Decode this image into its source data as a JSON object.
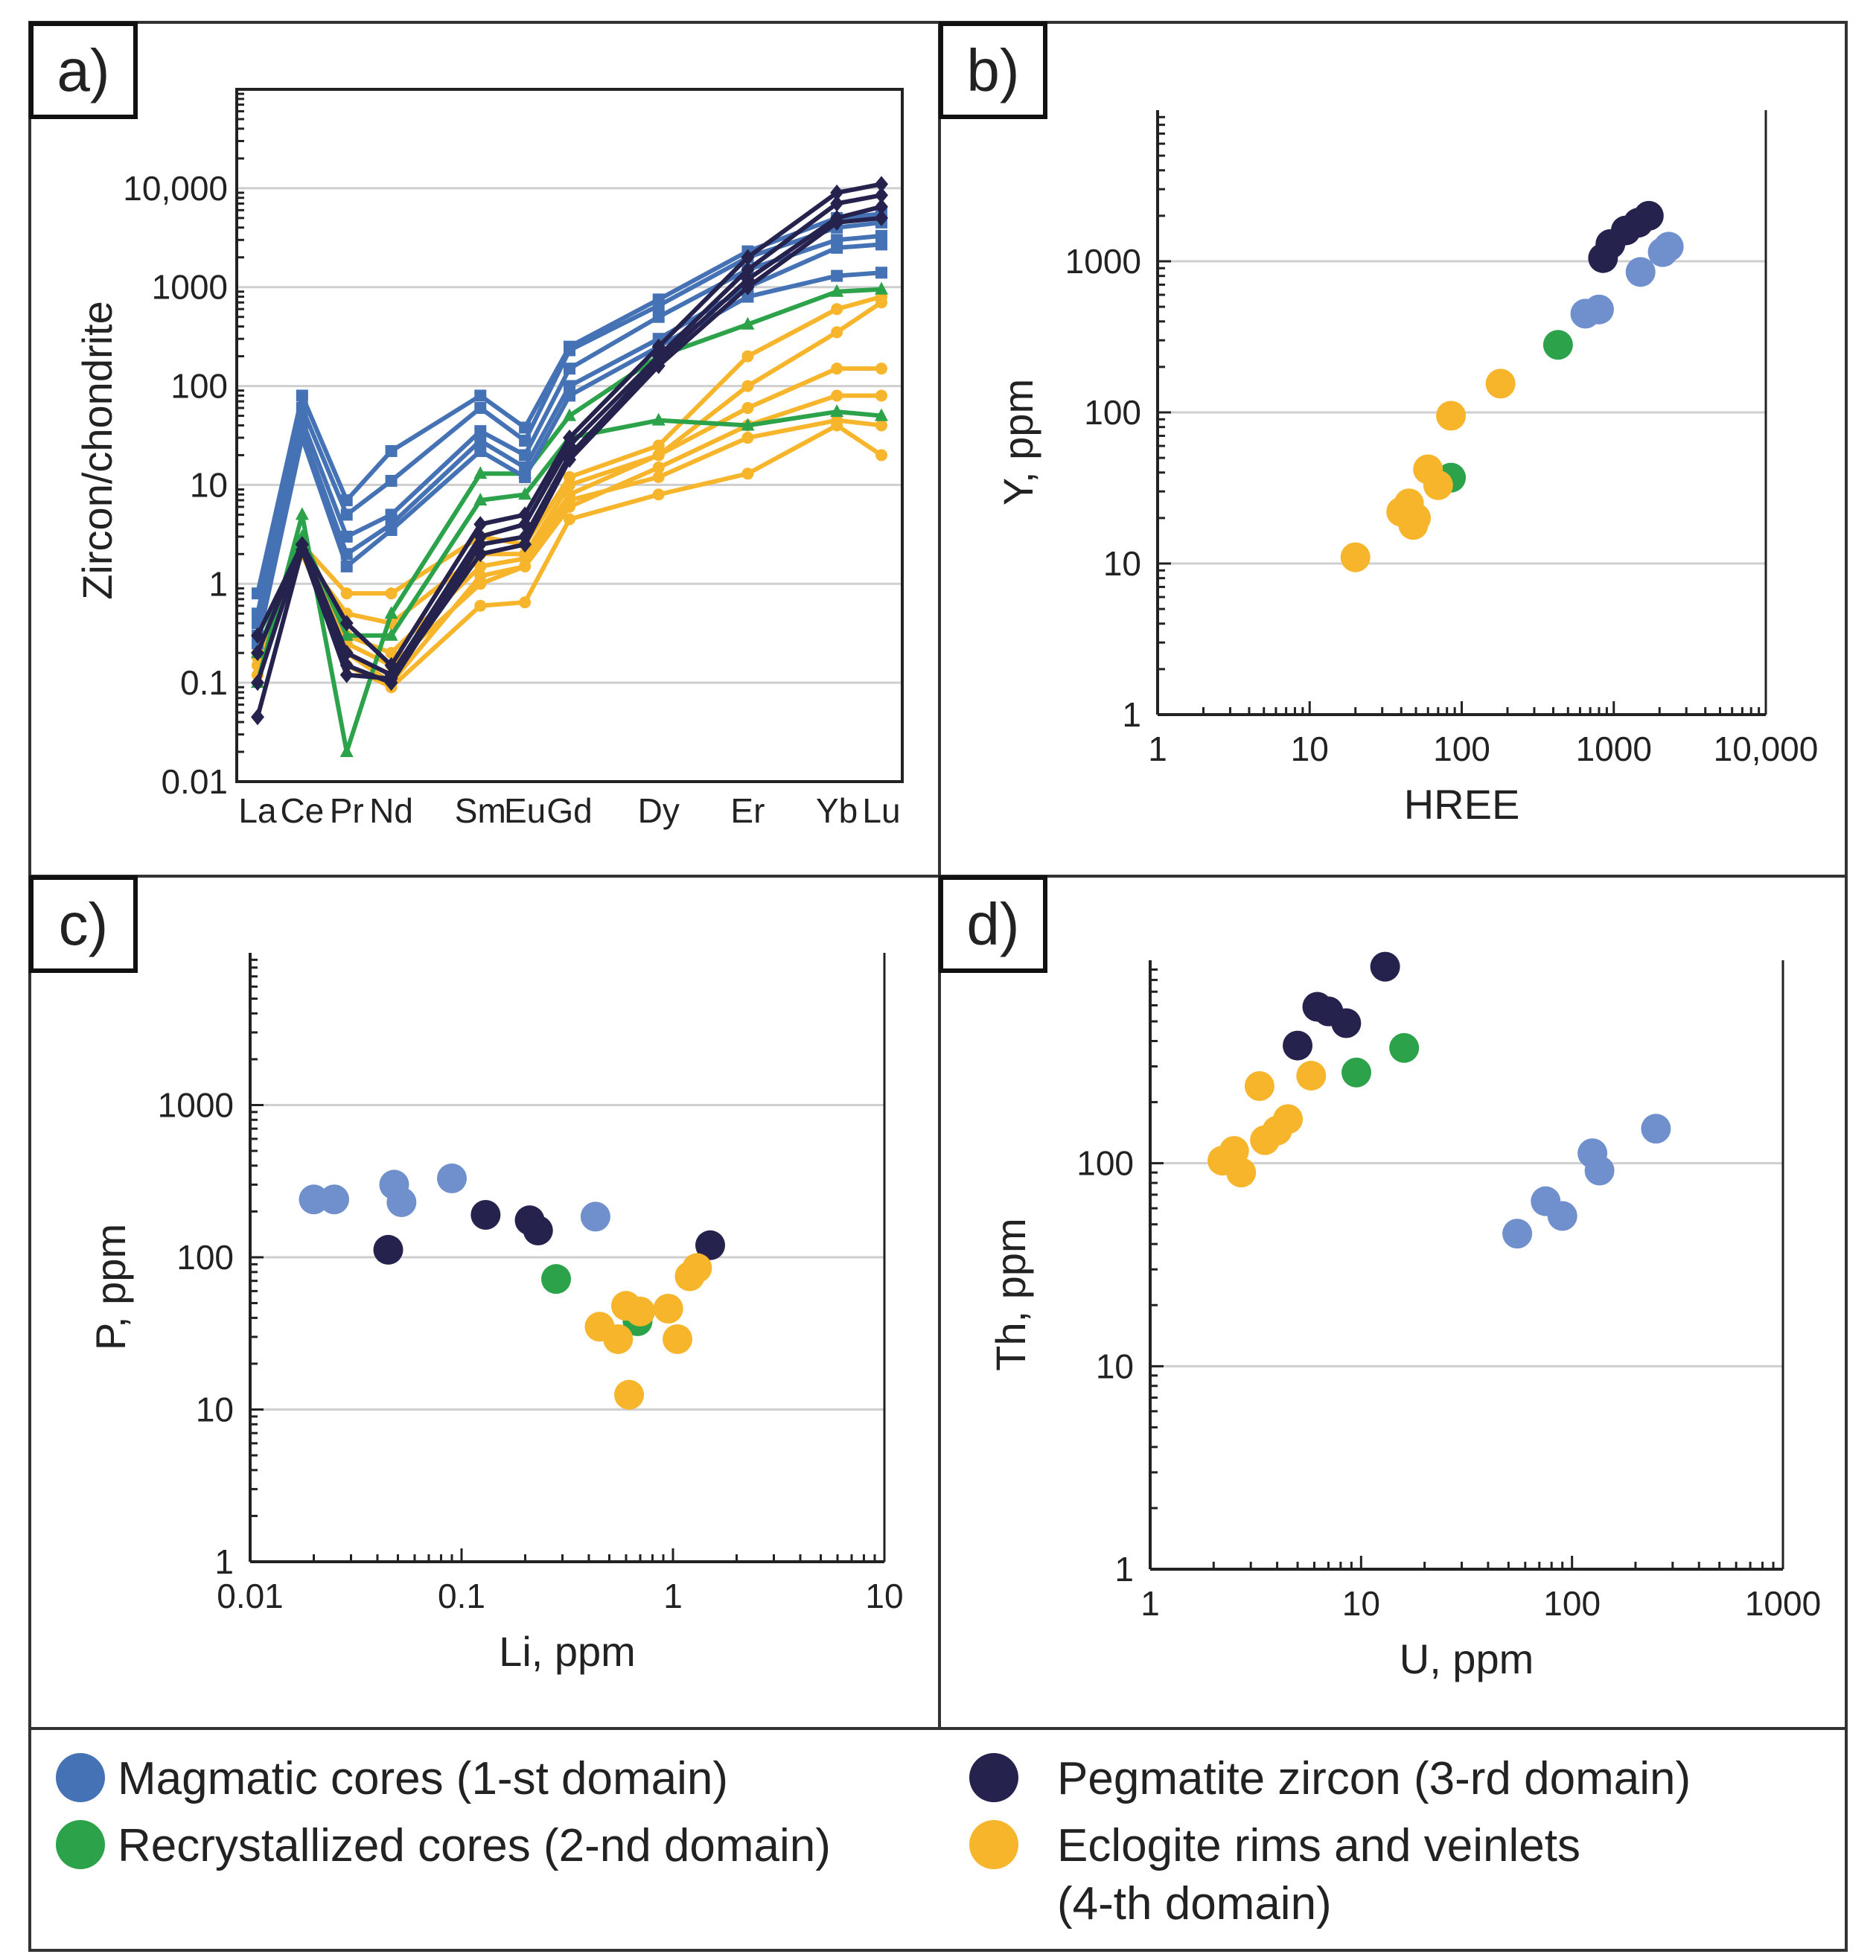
{
  "colors": {
    "magmatic": "#4472b4",
    "magmatic_light": "#6f8fcd",
    "recrystallized": "#2ca24a",
    "pegmatite": "#25224e",
    "eclogite": "#f7b52c"
  },
  "legend": {
    "items": [
      {
        "key": "magmatic",
        "label": "Magmatic cores (1-st domain)"
      },
      {
        "key": "recrystallized",
        "label": "Recrystallized cores (2-nd domain)"
      },
      {
        "key": "pegmatite",
        "label": "Pegmatite zircon (3-rd domain)"
      },
      {
        "key": "eclogite",
        "label_line1": "Eclogite rims and veinlets",
        "label_line2": "(4-th domain)"
      }
    ]
  },
  "chart_data": [
    {
      "panel": "a)",
      "type": "line",
      "ylabel": "Zircon/chondrite",
      "xlabel": "",
      "yscale": "log",
      "ylim": [
        0.01,
        100000
      ],
      "y_tick_labels": [
        "0.01",
        "0.1",
        "1",
        "10",
        "100",
        "1000",
        "10,000"
      ],
      "categories": [
        "La",
        "Ce",
        "Pr",
        "Nd",
        "Sm",
        "Eu",
        "Gd",
        "Dy",
        "Er",
        "Yb",
        "Lu"
      ],
      "series": [
        {
          "name": "Magmatic cores 1",
          "group": "magmatic",
          "values": [
            0.8,
            80,
            7,
            22,
            80,
            38,
            250,
            750,
            2300,
            5000,
            5500
          ]
        },
        {
          "name": "Magmatic cores 2",
          "group": "magmatic",
          "values": [
            0.5,
            60,
            5,
            11,
            60,
            28,
            230,
            650,
            2000,
            4000,
            4500
          ]
        },
        {
          "name": "Magmatic cores 3",
          "group": "magmatic",
          "values": [
            0.4,
            45,
            3,
            5,
            35,
            20,
            150,
            500,
            1500,
            3000,
            3300
          ]
        },
        {
          "name": "Magmatic cores 4",
          "group": "magmatic",
          "values": [
            0.3,
            35,
            2,
            4,
            28,
            15,
            100,
            300,
            1000,
            2500,
            2700
          ]
        },
        {
          "name": "Magmatic cores 5",
          "group": "magmatic",
          "values": [
            0.25,
            30,
            1.5,
            3.5,
            22,
            12,
            80,
            250,
            800,
            1300,
            1400
          ]
        },
        {
          "name": "Recrystallized cores 1",
          "group": "recrystallized",
          "values": [
            0.1,
            5,
            0.02,
            0.5,
            13,
            13,
            50,
            200,
            420,
            900,
            950
          ]
        },
        {
          "name": "Recrystallized cores 2",
          "group": "recrystallized",
          "values": [
            0.2,
            3,
            0.3,
            0.3,
            7,
            8,
            30,
            45,
            40,
            55,
            50
          ]
        },
        {
          "name": "Pegmatite zircon 1",
          "group": "pegmatite",
          "values": [
            0.3,
            2.5,
            0.4,
            0.15,
            4,
            5,
            30,
            250,
            2000,
            9000,
            11000
          ]
        },
        {
          "name": "Pegmatite zircon 2",
          "group": "pegmatite",
          "values": [
            0.2,
            2.5,
            0.2,
            0.12,
            3,
            4,
            25,
            200,
            1500,
            7000,
            8500
          ]
        },
        {
          "name": "Pegmatite zircon 3",
          "group": "pegmatite",
          "values": [
            0.1,
            2.5,
            0.15,
            0.1,
            2.5,
            3,
            20,
            180,
            1200,
            5000,
            6500
          ]
        },
        {
          "name": "Pegmatite zircon 4",
          "group": "pegmatite",
          "values": [
            0.045,
            2.2,
            0.12,
            0.11,
            2,
            2.5,
            18,
            160,
            1000,
            4500,
            5000
          ]
        },
        {
          "name": "Eclogite rims 1",
          "group": "eclogite",
          "values": [
            0.2,
            2.5,
            0.8,
            0.8,
            3,
            2.5,
            12,
            25,
            200,
            600,
            800
          ]
        },
        {
          "name": "Eclogite rims 2",
          "group": "eclogite",
          "values": [
            0.15,
            2,
            0.5,
            0.4,
            2,
            2,
            10,
            20,
            100,
            350,
            700
          ]
        },
        {
          "name": "Eclogite rims 3",
          "group": "eclogite",
          "values": [
            0.12,
            2.5,
            0.3,
            0.2,
            1.5,
            1.8,
            8,
            20,
            60,
            150,
            150
          ]
        },
        {
          "name": "Eclogite rims 4",
          "group": "eclogite",
          "values": [
            0.15,
            2,
            0.2,
            0.1,
            1.2,
            1.5,
            6,
            15,
            40,
            80,
            80
          ]
        },
        {
          "name": "Eclogite rims 5",
          "group": "eclogite",
          "values": [
            0.2,
            2.5,
            0.15,
            0.09,
            0.6,
            0.65,
            4.5,
            8,
            13,
            40,
            20
          ]
        },
        {
          "name": "Eclogite rims 6",
          "group": "eclogite",
          "values": [
            0.18,
            2.2,
            0.25,
            0.15,
            1,
            1.5,
            7,
            12,
            30,
            45,
            40
          ]
        }
      ]
    },
    {
      "panel": "b)",
      "type": "scatter",
      "xlabel": "HREE",
      "ylabel": "Y, ppm",
      "xscale": "log",
      "yscale": "log",
      "xlim": [
        1,
        10000
      ],
      "ylim": [
        1,
        10000
      ],
      "x_tick_labels": [
        "1",
        "10",
        "100",
        "1000",
        "10,000"
      ],
      "y_tick_labels": [
        "1",
        "10",
        "100",
        "1000"
      ],
      "series": [
        {
          "name": "Magmatic cores (1-st domain)",
          "group": "magmatic",
          "x": [
            650,
            800,
            1500,
            2100,
            2300
          ],
          "y": [
            450,
            480,
            850,
            1150,
            1250
          ]
        },
        {
          "name": "Recrystallized cores (2-nd domain)",
          "group": "recrystallized",
          "x": [
            430,
            85
          ],
          "y": [
            280,
            37
          ]
        },
        {
          "name": "Pegmatite zircon (3-rd domain)",
          "group": "pegmatite",
          "x": [
            850,
            950,
            1200,
            1450,
            1700
          ],
          "y": [
            1050,
            1300,
            1600,
            1800,
            2000
          ]
        },
        {
          "name": "Eclogite rims and veinlets (4-th domain)",
          "group": "eclogite",
          "x": [
            20,
            40,
            45,
            48,
            50,
            60,
            70,
            85,
            180
          ],
          "y": [
            11,
            22,
            25,
            18,
            20,
            42,
            33,
            95,
            155
          ]
        }
      ]
    },
    {
      "panel": "c)",
      "type": "scatter",
      "xlabel": "Li, ppm",
      "ylabel": "P, ppm",
      "xscale": "log",
      "yscale": "log",
      "xlim": [
        0.01,
        10
      ],
      "ylim": [
        1,
        10000
      ],
      "x_tick_labels": [
        "0.01",
        "0.1",
        "1",
        "10"
      ],
      "y_tick_labels": [
        "1",
        "10",
        "100",
        "1000"
      ],
      "series": [
        {
          "name": "Magmatic cores (1-st domain)",
          "group": "magmatic",
          "x": [
            0.02,
            0.025,
            0.048,
            0.052,
            0.09,
            0.43
          ],
          "y": [
            240,
            240,
            300,
            230,
            330,
            185
          ]
        },
        {
          "name": "Recrystallized cores (2-nd domain)",
          "group": "recrystallized",
          "x": [
            0.28,
            0.68
          ],
          "y": [
            72,
            38
          ]
        },
        {
          "name": "Pegmatite zircon (3-rd domain)",
          "group": "pegmatite",
          "x": [
            0.045,
            0.13,
            0.21,
            0.23,
            1.5
          ],
          "y": [
            112,
            190,
            175,
            150,
            120
          ]
        },
        {
          "name": "Eclogite rims and veinlets (4-th domain)",
          "group": "eclogite",
          "x": [
            0.45,
            0.55,
            0.6,
            0.62,
            0.7,
            0.95,
            1.05,
            1.2,
            1.3
          ],
          "y": [
            35,
            29,
            48,
            12.5,
            44,
            46,
            29,
            75,
            85
          ]
        }
      ]
    },
    {
      "panel": "d)",
      "type": "scatter",
      "xlabel": "U, ppm",
      "ylabel": "Th, ppm",
      "xscale": "log",
      "yscale": "log",
      "xlim": [
        1,
        1000
      ],
      "ylim": [
        1,
        1000
      ],
      "x_tick_labels": [
        "1",
        "10",
        "100",
        "1000"
      ],
      "y_tick_labels": [
        "1",
        "10",
        "100"
      ],
      "series": [
        {
          "name": "Magmatic cores (1-st domain)",
          "group": "magmatic",
          "x": [
            55,
            75,
            90,
            125,
            135,
            250
          ],
          "y": [
            45,
            65,
            55,
            112,
            92,
            148
          ]
        },
        {
          "name": "Recrystallized cores (2-nd domain)",
          "group": "recrystallized",
          "x": [
            9.5,
            16
          ],
          "y": [
            280,
            370
          ]
        },
        {
          "name": "Pegmatite zircon (3-rd domain)",
          "group": "pegmatite",
          "x": [
            5,
            6.2,
            7,
            8.5,
            13
          ],
          "y": [
            380,
            590,
            560,
            490,
            930
          ]
        },
        {
          "name": "Eclogite rims and veinlets (4-th domain)",
          "group": "eclogite",
          "x": [
            2.2,
            2.5,
            2.7,
            3.3,
            3.5,
            4,
            4.5,
            5.8
          ],
          "y": [
            103,
            115,
            90,
            240,
            130,
            145,
            165,
            270
          ]
        }
      ]
    }
  ]
}
